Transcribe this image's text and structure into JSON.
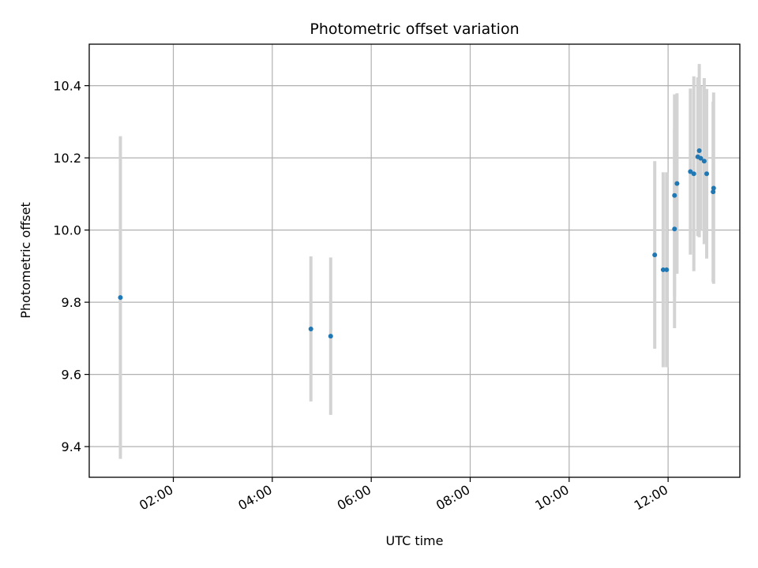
{
  "chart_data": {
    "type": "scatter",
    "title": "Photometric offset variation",
    "xlabel": "UTC time",
    "ylabel": "Photometric offset",
    "x_unit": "hours UTC",
    "xlim": [
      0.3,
      13.45
    ],
    "ylim": [
      9.315,
      10.515
    ],
    "x_ticks": [
      {
        "value": 2,
        "label": "02:00"
      },
      {
        "value": 4,
        "label": "04:00"
      },
      {
        "value": 6,
        "label": "06:00"
      },
      {
        "value": 8,
        "label": "08:00"
      },
      {
        "value": 10,
        "label": "10:00"
      },
      {
        "value": 12,
        "label": "12:00"
      }
    ],
    "y_ticks": [
      {
        "value": 9.4,
        "label": "9.4"
      },
      {
        "value": 9.6,
        "label": "9.6"
      },
      {
        "value": 9.8,
        "label": "9.8"
      },
      {
        "value": 10.0,
        "label": "10.0"
      },
      {
        "value": 10.2,
        "label": "10.2"
      },
      {
        "value": 10.4,
        "label": "10.4"
      }
    ],
    "grid": true,
    "marker_color": "#1f77b4",
    "errorbar_color": "#d3d3d3",
    "points": [
      {
        "x": 0.93,
        "y": 9.813,
        "err": 0.447
      },
      {
        "x": 4.78,
        "y": 9.726,
        "err": 0.201
      },
      {
        "x": 5.18,
        "y": 9.706,
        "err": 0.218
      },
      {
        "x": 11.73,
        "y": 9.931,
        "err": 0.26
      },
      {
        "x": 11.9,
        "y": 9.89,
        "err": 0.27
      },
      {
        "x": 11.97,
        "y": 9.89,
        "err": 0.27
      },
      {
        "x": 12.13,
        "y": 10.003,
        "err": 0.275
      },
      {
        "x": 12.13,
        "y": 10.096,
        "err": 0.28
      },
      {
        "x": 12.18,
        "y": 10.129,
        "err": 0.25
      },
      {
        "x": 12.45,
        "y": 10.162,
        "err": 0.23
      },
      {
        "x": 12.52,
        "y": 10.156,
        "err": 0.27
      },
      {
        "x": 12.6,
        "y": 10.203,
        "err": 0.22
      },
      {
        "x": 12.63,
        "y": 10.22,
        "err": 0.24
      },
      {
        "x": 12.66,
        "y": 10.199,
        "err": 0.2
      },
      {
        "x": 12.73,
        "y": 10.191,
        "err": 0.23
      },
      {
        "x": 12.78,
        "y": 10.156,
        "err": 0.235
      },
      {
        "x": 12.91,
        "y": 10.106,
        "err": 0.25
      },
      {
        "x": 12.92,
        "y": 10.116,
        "err": 0.265
      }
    ]
  }
}
